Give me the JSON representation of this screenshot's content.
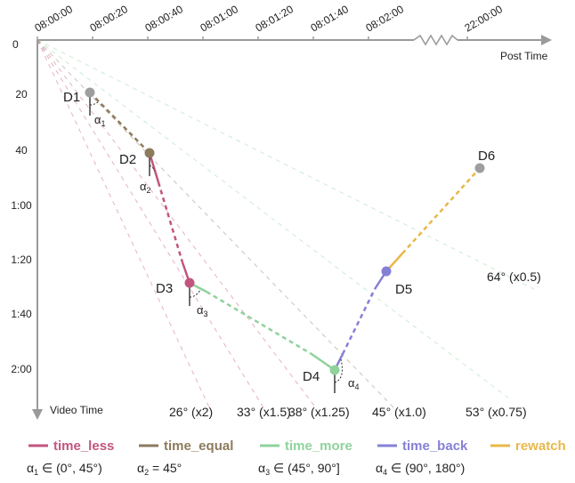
{
  "axes": {
    "x_title": "Post Time",
    "y_title": "Video Time",
    "x_ticks": [
      "08:00:00",
      "08:00:20",
      "08:00:40",
      "08:01:00",
      "08:01:20",
      "08:01:40",
      "08:02:00",
      "22:00:00"
    ],
    "y_ticks": [
      "0",
      "20",
      "40",
      "1:00",
      "1:20",
      "1:40",
      "2:00"
    ]
  },
  "nodes": [
    {
      "id": "D1",
      "color": "#9e9e9e"
    },
    {
      "id": "D2",
      "color": "#8c7b5c"
    },
    {
      "id": "D3",
      "color": "#c2557f"
    },
    {
      "id": "D4",
      "color": "#8fd29c"
    },
    {
      "id": "D5",
      "color": "#8580d6"
    },
    {
      "id": "D6",
      "color": "#9e9e9e"
    }
  ],
  "angle_labels": [
    {
      "base": "α",
      "sub": "1"
    },
    {
      "base": "α",
      "sub": "2"
    },
    {
      "base": "α",
      "sub": "3"
    },
    {
      "base": "α",
      "sub": "4"
    }
  ],
  "rays": [
    {
      "angle": "26°",
      "factor": "(x2)",
      "color": "#c2557f"
    },
    {
      "angle": "33°",
      "factor": "(x1.5)",
      "color": "#c2557f"
    },
    {
      "angle": "38°",
      "factor": "(x1.25)",
      "color": "#c2557f"
    },
    {
      "angle": "45°",
      "factor": "(x1.0)",
      "color": "#8c7b5c"
    },
    {
      "angle": "53°",
      "factor": "(x0.75)",
      "color": "#8fd29c"
    },
    {
      "angle": "64°",
      "factor": "(x0.5)",
      "color": "#8fd29c"
    }
  ],
  "legend": [
    {
      "label": "time_less",
      "color": "#c2557f",
      "range": {
        "base": "α",
        "sub": "1",
        "text": " ∈ (0°, 45°)"
      }
    },
    {
      "label": "time_equal",
      "color": "#8c7b5c",
      "range": {
        "base": "α",
        "sub": "2",
        "text": " = 45°"
      }
    },
    {
      "label": "time_more",
      "color": "#8fd29c",
      "range": {
        "base": "α",
        "sub": "3",
        "text": " ∈ (45°, 90°]"
      }
    },
    {
      "label": "time_back",
      "color": "#8580d6",
      "range": {
        "base": "α",
        "sub": "4",
        "text": " ∈ (90°, 180°)"
      }
    },
    {
      "label": "rewatch",
      "color": "#e8b84a",
      "range": null
    }
  ]
}
